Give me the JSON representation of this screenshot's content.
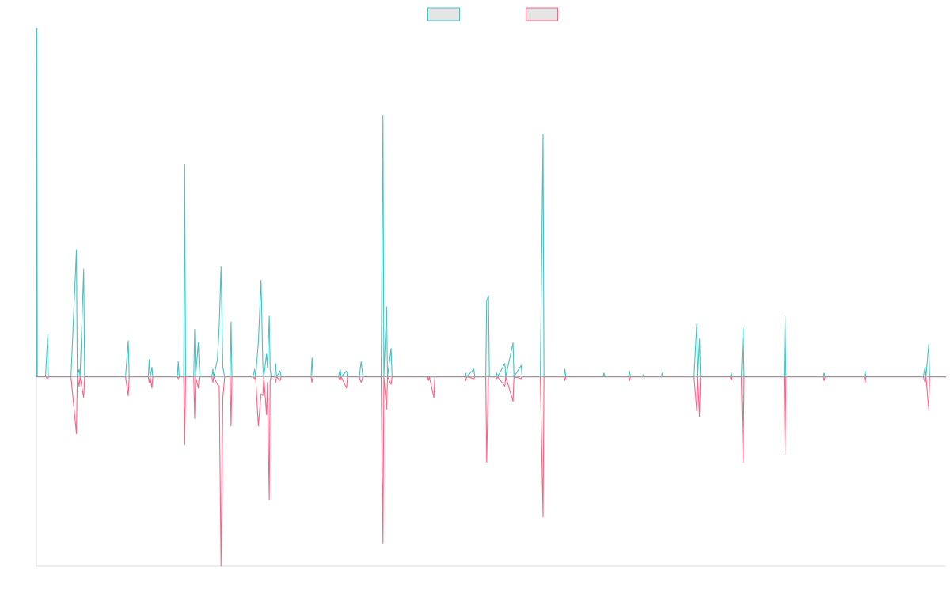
{
  "chart_data": {
    "type": "line",
    "title": "",
    "xlabel": "",
    "ylabel": "",
    "axes_visible": {
      "x_ticks": false,
      "y_ticks": false
    },
    "grid": false,
    "legend": {
      "placement": "top-center"
    },
    "x_range": [
      0,
      1000
    ],
    "ylim": [
      -1,
      1.84
    ],
    "colors": {
      "series_a": "#4BC0C0",
      "series_b": "#FF6384",
      "swatch_fill": "#E5E5E5",
      "axis": "#DDDDDD"
    },
    "series": [
      {
        "name": "",
        "color": "#4BC0C0",
        "points": [
          [
            0,
            0
          ],
          [
            0.5,
            1.84
          ],
          [
            1,
            0
          ],
          [
            10,
            0
          ],
          [
            12.5,
            0.22
          ],
          [
            13,
            0
          ],
          [
            38,
            0
          ],
          [
            44,
            0.67
          ],
          [
            45,
            0
          ],
          [
            47,
            0.04
          ],
          [
            48,
            0
          ],
          [
            52,
            0.57
          ],
          [
            53,
            0
          ],
          [
            98,
            0
          ],
          [
            101,
            0.19
          ],
          [
            102,
            0
          ],
          [
            123,
            0
          ],
          [
            124,
            0.09
          ],
          [
            125,
            0
          ],
          [
            127,
            0.05
          ],
          [
            128,
            0
          ],
          [
            155,
            0
          ],
          [
            156,
            0.08
          ],
          [
            157,
            0
          ],
          [
            162,
            0
          ],
          [
            163,
            1.12
          ],
          [
            164,
            0
          ],
          [
            173,
            0
          ],
          [
            174,
            0.25
          ],
          [
            175,
            0
          ],
          [
            178,
            0.18
          ],
          [
            179,
            0.06
          ],
          [
            180,
            0
          ],
          [
            193,
            0
          ],
          [
            194,
            0.04
          ],
          [
            195,
            0
          ],
          [
            199,
            0.09
          ],
          [
            201,
            0.27
          ],
          [
            203,
            0.58
          ],
          [
            205,
            0.05
          ],
          [
            207,
            0
          ],
          [
            213,
            0
          ],
          [
            214,
            0.29
          ],
          [
            215,
            0
          ],
          [
            238,
            0
          ],
          [
            240,
            0.04
          ],
          [
            241,
            0
          ],
          [
            244,
            0.18
          ],
          [
            247,
            0.51
          ],
          [
            249,
            0.05
          ],
          [
            250,
            0
          ],
          [
            253,
            0.12
          ],
          [
            254,
            0.05
          ],
          [
            256,
            0.32
          ],
          [
            257,
            0.04
          ],
          [
            258,
            0
          ],
          [
            262,
            0
          ],
          [
            263,
            0.07
          ],
          [
            264,
            0
          ],
          [
            268,
            0.03
          ],
          [
            269,
            0
          ],
          [
            302,
            0
          ],
          [
            303,
            0.1
          ],
          [
            304,
            0
          ],
          [
            332,
            0
          ],
          [
            334,
            0.04
          ],
          [
            335,
            0
          ],
          [
            341,
            0.03
          ],
          [
            342,
            0
          ],
          [
            355,
            0
          ],
          [
            357,
            0.08
          ],
          [
            359,
            0
          ],
          [
            379,
            0
          ],
          [
            381,
            1.38
          ],
          [
            382,
            0
          ],
          [
            385,
            0.37
          ],
          [
            386,
            0
          ],
          [
            390,
            0.15
          ],
          [
            391,
            0
          ],
          [
            471,
            0
          ],
          [
            472,
            0.02
          ],
          [
            473,
            0
          ],
          [
            481,
            0.04
          ],
          [
            482,
            0
          ],
          [
            494,
            0
          ],
          [
            495,
            0.4
          ],
          [
            497,
            0.43
          ],
          [
            498,
            0
          ],
          [
            505,
            0
          ],
          [
            506,
            0.02
          ],
          [
            507,
            0
          ],
          [
            515,
            0.07
          ],
          [
            516,
            0
          ],
          [
            524,
            0.18
          ],
          [
            525,
            0
          ],
          [
            533,
            0.06
          ],
          [
            534,
            0
          ],
          [
            554,
            0
          ],
          [
            557,
            1.28
          ],
          [
            558,
            0
          ],
          [
            580,
            0
          ],
          [
            581,
            0.04
          ],
          [
            582,
            0
          ],
          [
            623,
            0
          ],
          [
            624,
            0.02
          ],
          [
            625,
            0
          ],
          [
            651,
            0
          ],
          [
            652,
            0.03
          ],
          [
            653,
            0
          ],
          [
            666,
            0
          ],
          [
            667,
            0.01
          ],
          [
            668,
            0
          ],
          [
            687,
            0
          ],
          [
            688,
            0.02
          ],
          [
            689,
            0
          ],
          [
            723,
            0
          ],
          [
            726,
            0.28
          ],
          [
            727,
            0
          ],
          [
            729,
            0.2
          ],
          [
            730,
            0
          ],
          [
            763,
            0
          ],
          [
            764,
            0.02
          ],
          [
            765,
            0
          ],
          [
            775,
            0
          ],
          [
            777,
            0.26
          ],
          [
            778,
            0
          ],
          [
            822,
            0
          ],
          [
            823,
            0.32
          ],
          [
            824,
            0
          ],
          [
            865,
            0
          ],
          [
            866,
            0.02
          ],
          [
            867,
            0
          ],
          [
            910,
            0
          ],
          [
            911,
            0.03
          ],
          [
            912,
            0
          ],
          [
            975,
            0
          ],
          [
            977,
            0.05
          ],
          [
            978,
            0
          ],
          [
            981,
            0.17
          ],
          [
            982,
            0
          ],
          [
            1000,
            0
          ]
        ]
      },
      {
        "name": "",
        "color": "#FF6384",
        "points": [
          [
            0,
            0
          ],
          [
            10,
            0
          ],
          [
            12.5,
            -0.01
          ],
          [
            13,
            0
          ],
          [
            38,
            0
          ],
          [
            44,
            -0.3
          ],
          [
            45,
            0
          ],
          [
            47,
            -0.05
          ],
          [
            48,
            0
          ],
          [
            52,
            -0.11
          ],
          [
            53,
            0
          ],
          [
            98,
            0
          ],
          [
            101,
            -0.1
          ],
          [
            102,
            0
          ],
          [
            123,
            0
          ],
          [
            124,
            -0.03
          ],
          [
            125,
            0
          ],
          [
            127,
            -0.06
          ],
          [
            128,
            0
          ],
          [
            155,
            0
          ],
          [
            156,
            -0.01
          ],
          [
            157,
            0
          ],
          [
            162,
            0
          ],
          [
            163,
            -0.36
          ],
          [
            164,
            0
          ],
          [
            173,
            0
          ],
          [
            174,
            -0.22
          ],
          [
            175,
            0
          ],
          [
            178,
            -0.06
          ],
          [
            179,
            0
          ],
          [
            193,
            0
          ],
          [
            194,
            -0.03
          ],
          [
            195,
            0
          ],
          [
            199,
            -0.04
          ],
          [
            201,
            -0.05
          ],
          [
            203,
            -1.0
          ],
          [
            205,
            -0.11
          ],
          [
            207,
            0
          ],
          [
            213,
            0
          ],
          [
            214,
            -0.26
          ],
          [
            215,
            0
          ],
          [
            238,
            0
          ],
          [
            240,
            -0.01
          ],
          [
            241,
            0
          ],
          [
            244,
            -0.26
          ],
          [
            247,
            -0.09
          ],
          [
            249,
            -0.1
          ],
          [
            250,
            0
          ],
          [
            253,
            -0.2
          ],
          [
            254,
            -0.03
          ],
          [
            256,
            -0.65
          ],
          [
            257,
            -0.02
          ],
          [
            258,
            0
          ],
          [
            262,
            0
          ],
          [
            263,
            -0.03
          ],
          [
            264,
            0
          ],
          [
            268,
            -0.02
          ],
          [
            269,
            0
          ],
          [
            302,
            0
          ],
          [
            303,
            -0.03
          ],
          [
            304,
            0
          ],
          [
            332,
            0
          ],
          [
            334,
            -0.02
          ],
          [
            335,
            0
          ],
          [
            341,
            -0.06
          ],
          [
            342,
            0
          ],
          [
            355,
            0
          ],
          [
            357,
            -0.03
          ],
          [
            359,
            0
          ],
          [
            379,
            0
          ],
          [
            381,
            -0.88
          ],
          [
            382,
            0
          ],
          [
            385,
            -0.17
          ],
          [
            386,
            0
          ],
          [
            390,
            -0.04
          ],
          [
            391,
            0
          ],
          [
            430,
            0
          ],
          [
            431,
            -0.02
          ],
          [
            432,
            0
          ],
          [
            437,
            -0.11
          ],
          [
            438,
            0
          ],
          [
            471,
            0
          ],
          [
            472,
            -0.02
          ],
          [
            473,
            0
          ],
          [
            481,
            -0.01
          ],
          [
            482,
            0
          ],
          [
            494,
            0
          ],
          [
            495,
            -0.45
          ],
          [
            497,
            0
          ],
          [
            498,
            0
          ],
          [
            505,
            0
          ],
          [
            506,
            -0.01
          ],
          [
            507,
            0
          ],
          [
            515,
            -0.05
          ],
          [
            516,
            0
          ],
          [
            524,
            -0.13
          ],
          [
            525,
            0
          ],
          [
            533,
            -0.01
          ],
          [
            534,
            0
          ],
          [
            554,
            0
          ],
          [
            557,
            -0.74
          ],
          [
            558,
            0
          ],
          [
            580,
            0
          ],
          [
            581,
            -0.02
          ],
          [
            582,
            0
          ],
          [
            651,
            0
          ],
          [
            652,
            -0.02
          ],
          [
            653,
            0
          ],
          [
            723,
            0
          ],
          [
            726,
            -0.18
          ],
          [
            727,
            0
          ],
          [
            729,
            -0.21
          ],
          [
            730,
            0
          ],
          [
            763,
            0
          ],
          [
            764,
            -0.02
          ],
          [
            765,
            0
          ],
          [
            775,
            0
          ],
          [
            777,
            -0.45
          ],
          [
            778,
            0
          ],
          [
            822,
            0
          ],
          [
            823,
            -0.41
          ],
          [
            824,
            0
          ],
          [
            865,
            0
          ],
          [
            866,
            -0.02
          ],
          [
            867,
            0
          ],
          [
            910,
            0
          ],
          [
            911,
            -0.03
          ],
          [
            912,
            0
          ],
          [
            975,
            0
          ],
          [
            977,
            -0.03
          ],
          [
            978,
            0
          ],
          [
            981,
            -0.17
          ],
          [
            982,
            0
          ],
          [
            1000,
            0
          ]
        ]
      }
    ]
  }
}
